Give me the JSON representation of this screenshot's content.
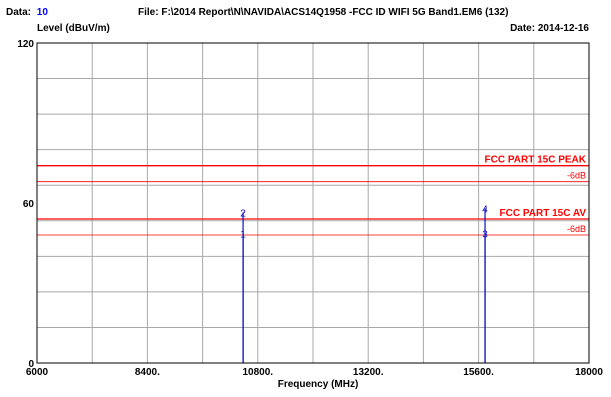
{
  "header": {
    "data_label": "Data:",
    "data_value": "10",
    "file_text": "File: F:\\2014 Report\\N\\NAVIDA\\ACS14Q1958 -FCC ID WIFI 5G Band1.EM6  (132)",
    "date_text": "Date: 2014-12-16"
  },
  "colors": {
    "grid": "#a9a9a9",
    "axis": "#000000",
    "limit_line": "#ff0000",
    "measurement": "#1010c0",
    "data_value": "#0000ff",
    "background": "#ffffff"
  },
  "chart_data": {
    "type": "line",
    "title": "",
    "xlabel": "Frequency (MHz)",
    "ylabel": "Level (dBuV/m)",
    "xlim": [
      6000,
      18000
    ],
    "ylim": [
      0,
      120
    ],
    "x_ticks": [
      6000,
      8400,
      10800,
      13200,
      15600,
      18000
    ],
    "x_tick_labels": [
      "6000",
      "8400.",
      "10800.",
      "13200.",
      "15600.",
      "18000"
    ],
    "y_ticks": [
      0,
      60,
      120
    ],
    "y_tick_labels": [
      "0",
      "60",
      "120"
    ],
    "grid": true,
    "grid_x_divisions": 10,
    "grid_y_divisions": 9,
    "limit_lines": [
      {
        "name": "FCC PART 15C  PEAK",
        "value": 74
      },
      {
        "name": "-6dB",
        "value": 68
      },
      {
        "name": "FCC PART 15C  AV",
        "value": 54
      },
      {
        "name": "-6dB",
        "value": 48
      }
    ],
    "markers": [
      {
        "label": "1",
        "x": 10480,
        "y": 48.5
      },
      {
        "label": "2",
        "x": 10480,
        "y": 56.5
      },
      {
        "label": "3",
        "x": 15740,
        "y": 48.5
      },
      {
        "label": "4",
        "x": 15740,
        "y": 58
      }
    ]
  }
}
